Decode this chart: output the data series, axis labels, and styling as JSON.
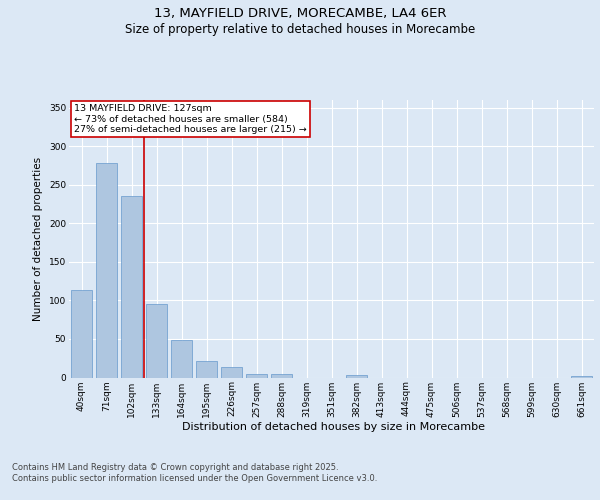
{
  "title": "13, MAYFIELD DRIVE, MORECAMBE, LA4 6ER",
  "subtitle": "Size of property relative to detached houses in Morecambe",
  "xlabel": "Distribution of detached houses by size in Morecambe",
  "ylabel": "Number of detached properties",
  "categories": [
    "40sqm",
    "71sqm",
    "102sqm",
    "133sqm",
    "164sqm",
    "195sqm",
    "226sqm",
    "257sqm",
    "288sqm",
    "319sqm",
    "351sqm",
    "382sqm",
    "413sqm",
    "444sqm",
    "475sqm",
    "506sqm",
    "537sqm",
    "568sqm",
    "599sqm",
    "630sqm",
    "661sqm"
  ],
  "values": [
    113,
    278,
    235,
    96,
    49,
    21,
    13,
    5,
    5,
    0,
    0,
    3,
    0,
    0,
    0,
    0,
    0,
    0,
    0,
    0,
    2
  ],
  "bar_color": "#aec6e0",
  "bar_edge_color": "#6699cc",
  "bar_linewidth": 0.5,
  "vline_x_idx": 2,
  "vline_color": "#cc0000",
  "vline_linewidth": 1.2,
  "annotation_text": "13 MAYFIELD DRIVE: 127sqm\n← 73% of detached houses are smaller (584)\n27% of semi-detached houses are larger (215) →",
  "annotation_box_edgecolor": "#cc0000",
  "annotation_box_facecolor": "#ffffff",
  "ylim": [
    0,
    360
  ],
  "yticks": [
    0,
    50,
    100,
    150,
    200,
    250,
    300,
    350
  ],
  "bg_color": "#dce8f5",
  "plot_bg_color": "#dce8f5",
  "grid_color": "#ffffff",
  "footer_line1": "Contains HM Land Registry data © Crown copyright and database right 2025.",
  "footer_line2": "Contains public sector information licensed under the Open Government Licence v3.0.",
  "title_fontsize": 9.5,
  "subtitle_fontsize": 8.5,
  "xlabel_fontsize": 8,
  "ylabel_fontsize": 7.5,
  "tick_fontsize": 6.5,
  "annotation_fontsize": 6.8,
  "footer_fontsize": 6
}
